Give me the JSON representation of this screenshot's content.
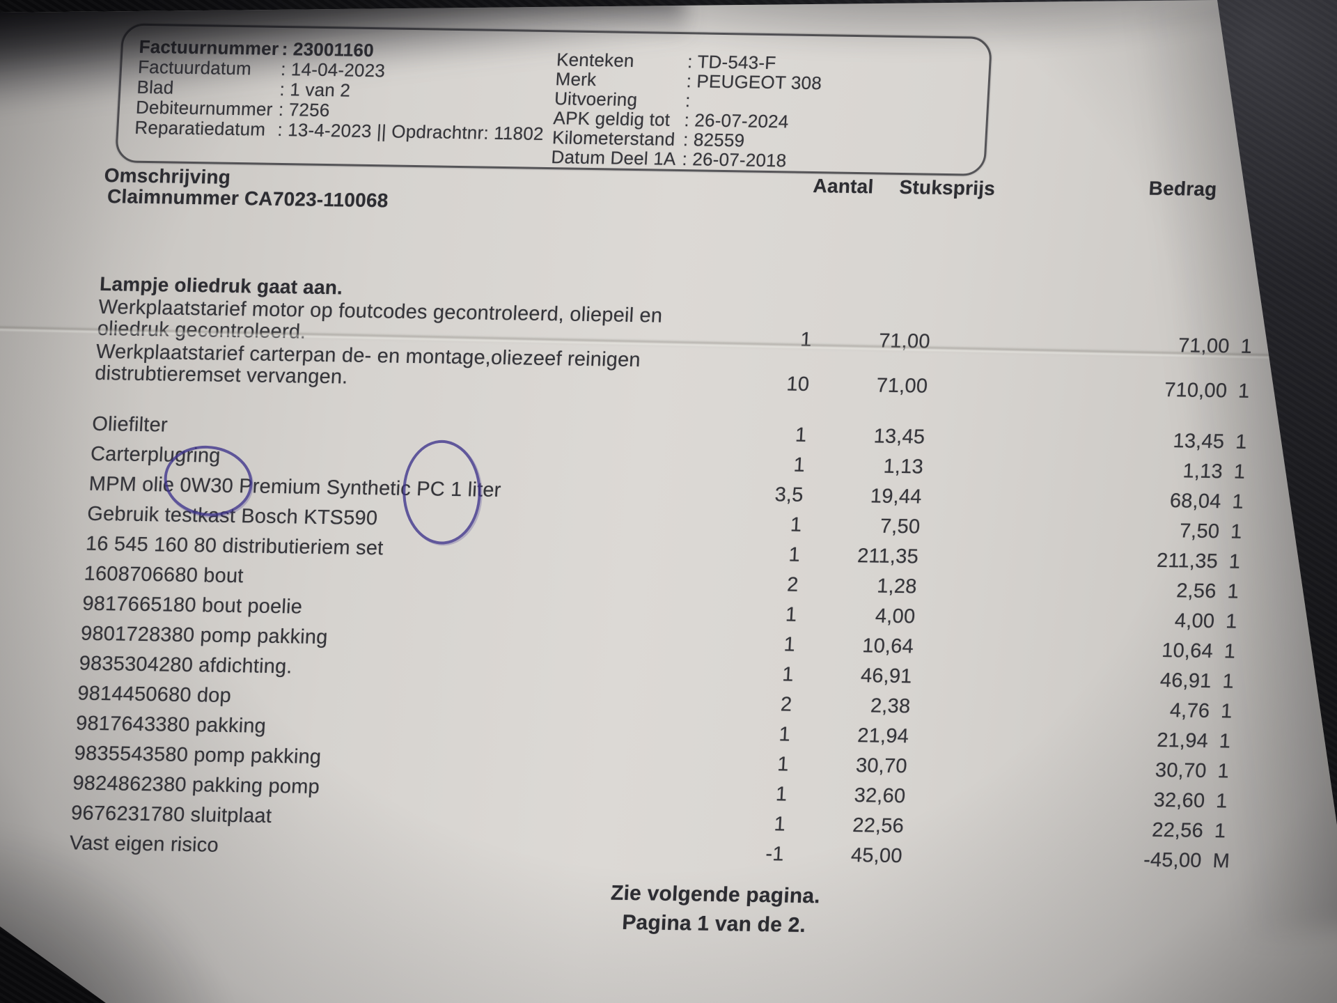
{
  "photo": {
    "paper_color": "#d8d5d1",
    "background_color": "#0b0b0d",
    "pen_color": "#3e338c",
    "ink_color": "#35353a"
  },
  "header_box": {
    "left": [
      {
        "label": "Factuurnummer",
        "value": ": 23001160"
      },
      {
        "label": "Factuurdatum",
        "value": ": 14-04-2023"
      },
      {
        "label": "Blad",
        "value": ": 1 van 2"
      },
      {
        "label": "Debiteurnummer",
        "value": ": 7256"
      },
      {
        "label": "Reparatiedatum",
        "value": ": 13-4-2023 || Opdrachtnr: 11802"
      }
    ],
    "right": [
      {
        "label": "Kenteken",
        "value": ": TD-543-F"
      },
      {
        "label": "Merk",
        "value": ": PEUGEOT 308"
      },
      {
        "label": "Uitvoering",
        "value": ":"
      },
      {
        "label": "APK geldig tot",
        "value": ": 26-07-2024"
      },
      {
        "label": "Kilometerstand",
        "value": ": 82559"
      },
      {
        "label": "Datum Deel 1A",
        "value": ": 26-07-2018"
      }
    ]
  },
  "table": {
    "section_title": "Omschrijving",
    "claim_line": "Claimnummer CA7023-110068",
    "columns": {
      "aantal": "Aantal",
      "stuksprijs": "Stuksprijs",
      "bedrag": "Bedrag"
    },
    "intro": "Lampje oliedruk gaat aan.",
    "rows": [
      {
        "desc_line1": "Werkplaatstarief motor op foutcodes gecontroleerd, oliepeil en",
        "desc_line2": "oliedruk gecontroleerd.",
        "qty": "1",
        "price": "71,00",
        "amount": "71,00",
        "code": "1"
      },
      {
        "desc_line1": "Werkplaatstarief carterpan de- en montage,oliezeef reinigen",
        "desc_line2": "distrubtieremset vervangen.",
        "qty": "10",
        "price": "71,00",
        "amount": "710,00",
        "code": "1"
      },
      {
        "desc": "Oliefilter",
        "qty": "1",
        "price": "13,45",
        "amount": "13,45",
        "code": "1"
      },
      {
        "desc": "Carterplugring",
        "qty": "1",
        "price": "1,13",
        "amount": "1,13",
        "code": "1"
      },
      {
        "desc_pre": "MPM olie ",
        "desc_circle1": "0W30",
        "desc_mid": " Premium Synthetic ",
        "desc_circle2": "PC 1",
        "desc_post": " liter",
        "qty": "3,5",
        "price": "19,44",
        "amount": "68,04",
        "code": "1"
      },
      {
        "desc": "Gebruik testkast Bosch KTS590",
        "qty": "1",
        "price": "7,50",
        "amount": "7,50",
        "code": "1"
      },
      {
        "desc": "16 545 160 80 distributieriem set",
        "qty": "1",
        "price": "211,35",
        "amount": "211,35",
        "code": "1"
      },
      {
        "desc": "1608706680 bout",
        "qty": "2",
        "price": "1,28",
        "amount": "2,56",
        "code": "1"
      },
      {
        "desc": "9817665180 bout poelie",
        "qty": "1",
        "price": "4,00",
        "amount": "4,00",
        "code": "1"
      },
      {
        "desc": "9801728380 pomp pakking",
        "qty": "1",
        "price": "10,64",
        "amount": "10,64",
        "code": "1"
      },
      {
        "desc": "9835304280 afdichting.",
        "qty": "1",
        "price": "46,91",
        "amount": "46,91",
        "code": "1"
      },
      {
        "desc": "9814450680 dop",
        "qty": "2",
        "price": "2,38",
        "amount": "4,76",
        "code": "1"
      },
      {
        "desc": "9817643380 pakking",
        "qty": "1",
        "price": "21,94",
        "amount": "21,94",
        "code": "1"
      },
      {
        "desc": "9835543580 pomp pakking",
        "qty": "1",
        "price": "30,70",
        "amount": "30,70",
        "code": "1"
      },
      {
        "desc": "9824862380 pakking pomp",
        "qty": "1",
        "price": "32,60",
        "amount": "32,60",
        "code": "1"
      },
      {
        "desc": "9676231780 sluitplaat",
        "qty": "1",
        "price": "22,56",
        "amount": "22,56",
        "code": "1"
      },
      {
        "desc": "Vast eigen risico",
        "qty": "-1",
        "price": "45,00",
        "amount": "-45,00",
        "code": "M"
      }
    ]
  },
  "footer": {
    "line1": "Zie volgende pagina.",
    "line2": "Pagina 1 van de 2."
  }
}
